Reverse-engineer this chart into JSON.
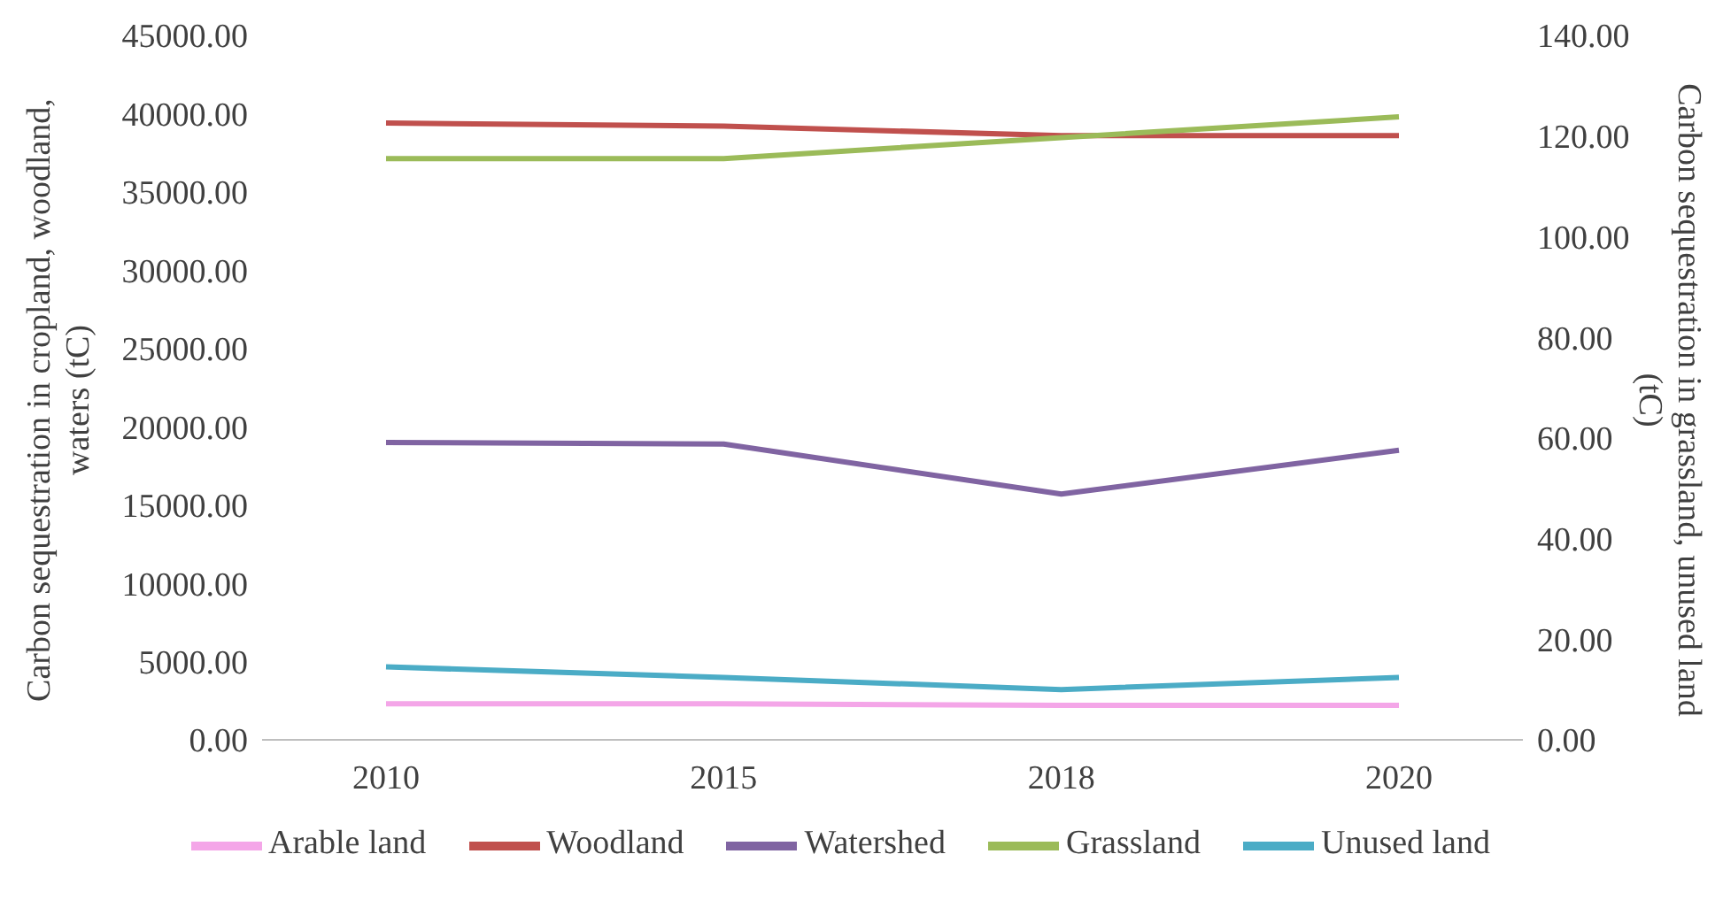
{
  "chart_data": {
    "type": "line",
    "categories": [
      "2010",
      "2015",
      "2018",
      "2020"
    ],
    "ylabel": "Carbon sequestration in cropland, woodland, waters (tC)",
    "y2label": "Carbon sequestration in grassland, unused land (tC)",
    "ylim": [
      0,
      45000
    ],
    "yticks": [
      {
        "value": 0,
        "label": "0.00"
      },
      {
        "value": 5000,
        "label": "5000.00"
      },
      {
        "value": 10000,
        "label": "10000.00"
      },
      {
        "value": 15000,
        "label": "15000.00"
      },
      {
        "value": 20000,
        "label": "20000.00"
      },
      {
        "value": 25000,
        "label": "25000.00"
      },
      {
        "value": 30000,
        "label": "30000.00"
      },
      {
        "value": 35000,
        "label": "35000.00"
      },
      {
        "value": 40000,
        "label": "40000.00"
      },
      {
        "value": 45000,
        "label": "45000.00"
      }
    ],
    "y2lim": [
      0,
      140
    ],
    "y2ticks": [
      {
        "value": 0,
        "label": "0.00"
      },
      {
        "value": 20,
        "label": "20.00"
      },
      {
        "value": 40,
        "label": "40.00"
      },
      {
        "value": 60,
        "label": "60.00"
      },
      {
        "value": 80,
        "label": "80.00"
      },
      {
        "value": 100,
        "label": "100.00"
      },
      {
        "value": 120,
        "label": "120.00"
      },
      {
        "value": 140,
        "label": "140.00"
      }
    ],
    "grid": false,
    "legend": "bottom",
    "marker": "none",
    "line_style": "solid",
    "series": [
      {
        "name": "Arable land",
        "color": "#f4a6e8",
        "values": [
          2300,
          2300,
          2200,
          2200
        ]
      },
      {
        "name": "Woodland",
        "color": "#c0504d",
        "values": [
          39400,
          39200,
          38600,
          38600
        ]
      },
      {
        "name": "Watershed",
        "color": "#8064a2",
        "values": [
          19000,
          18900,
          15700,
          18500
        ]
      },
      {
        "name": "Grassland",
        "color": "#9bbb59",
        "values": [
          115.5,
          115.5,
          119.7,
          123.8
        ],
        "axis": "y2"
      },
      {
        "name": "Unused land",
        "color": "#4bacc6",
        "values": [
          14.5,
          12.4,
          10.0,
          12.4
        ],
        "axis": "y2"
      }
    ]
  }
}
